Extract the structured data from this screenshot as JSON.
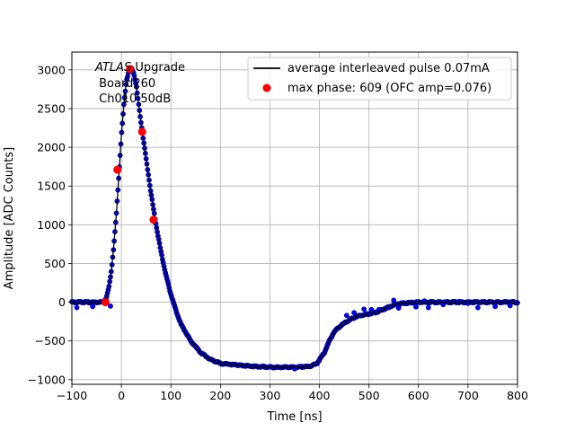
{
  "chart_data": {
    "type": "line",
    "title": "",
    "xlabel": "Time [ns]",
    "ylabel": "Amplitude [ADC Counts]",
    "xlim": [
      -100,
      800
    ],
    "ylim": [
      -1060,
      3230
    ],
    "x_ticks": [
      -100,
      0,
      100,
      200,
      300,
      400,
      500,
      600,
      700,
      800
    ],
    "y_ticks": [
      -1000,
      -500,
      0,
      500,
      1000,
      1500,
      2000,
      2500,
      3000
    ],
    "grid": true,
    "legend_position": "top-right",
    "annotation": {
      "line1_italic": "ATLAS",
      "line1_rest": " Upgrade",
      "line2": " Board260",
      "line3": " Ch010 50dB"
    },
    "series": [
      {
        "name": "average interleaved pulse 0.07mA",
        "kind": "line",
        "color": "#000000",
        "points": [
          [
            -100,
            0
          ],
          [
            -60,
            0
          ],
          [
            -40,
            0
          ],
          [
            -35,
            10
          ],
          [
            -30,
            60
          ],
          [
            -25,
            200
          ],
          [
            -20,
            420
          ],
          [
            -15,
            750
          ],
          [
            -10,
            1150
          ],
          [
            -5,
            1650
          ],
          [
            0,
            2150
          ],
          [
            5,
            2550
          ],
          [
            10,
            2850
          ],
          [
            15,
            2990
          ],
          [
            20,
            3020
          ],
          [
            25,
            2960
          ],
          [
            30,
            2800
          ],
          [
            40,
            2300
          ],
          [
            50,
            1850
          ],
          [
            60,
            1400
          ],
          [
            70,
            1000
          ],
          [
            80,
            650
          ],
          [
            90,
            350
          ],
          [
            100,
            100
          ],
          [
            110,
            -100
          ],
          [
            120,
            -280
          ],
          [
            140,
            -500
          ],
          [
            160,
            -650
          ],
          [
            180,
            -740
          ],
          [
            200,
            -790
          ],
          [
            250,
            -820
          ],
          [
            300,
            -840
          ],
          [
            350,
            -840
          ],
          [
            380,
            -830
          ],
          [
            395,
            -790
          ],
          [
            410,
            -650
          ],
          [
            420,
            -500
          ],
          [
            430,
            -380
          ],
          [
            440,
            -320
          ],
          [
            450,
            -270
          ],
          [
            460,
            -230
          ],
          [
            470,
            -200
          ],
          [
            480,
            -175
          ],
          [
            500,
            -150
          ],
          [
            520,
            -120
          ],
          [
            540,
            -60
          ],
          [
            560,
            -20
          ],
          [
            580,
            -8
          ],
          [
            600,
            0
          ],
          [
            700,
            0
          ],
          [
            800,
            0
          ]
        ]
      },
      {
        "name": "max phase: 609 (OFC amp=0.076)",
        "kind": "markers",
        "color": "#ff0000",
        "points": [
          [
            -32,
            0
          ],
          [
            17,
            3010
          ],
          [
            -8,
            1710
          ],
          [
            42,
            2200
          ],
          [
            65,
            1065
          ]
        ]
      }
    ],
    "raw_samples": {
      "color": "#0000ff",
      "edge_color": "#000080",
      "points": [
        [
          -90,
          -70
        ],
        [
          -58,
          -55
        ],
        [
          -22,
          -50
        ],
        [
          350,
          -860
        ],
        [
          455,
          -170
        ],
        [
          470,
          -135
        ],
        [
          490,
          -90
        ],
        [
          505,
          -95
        ],
        [
          520,
          -95
        ],
        [
          540,
          -70
        ],
        [
          560,
          -75
        ],
        [
          595,
          -60
        ],
        [
          620,
          -70
        ],
        [
          650,
          -30
        ],
        [
          700,
          -15
        ],
        [
          720,
          -70
        ],
        [
          755,
          -55
        ],
        [
          785,
          -45
        ],
        [
          682,
          10
        ],
        [
          612,
          15
        ],
        [
          550,
          25
        ]
      ]
    }
  }
}
